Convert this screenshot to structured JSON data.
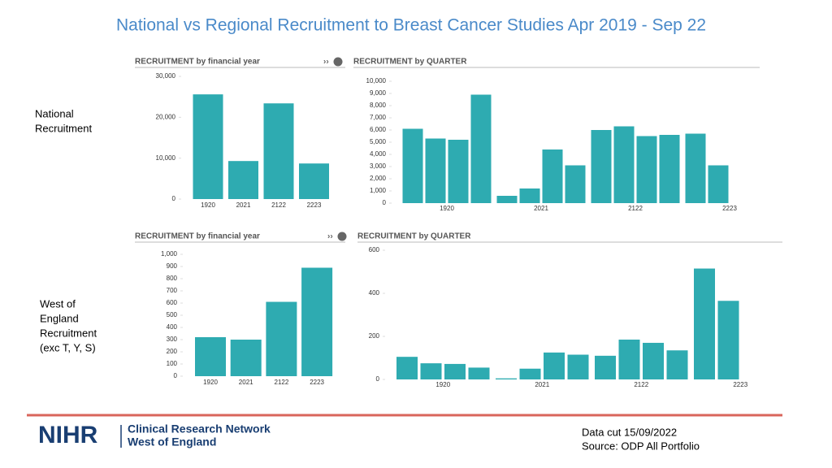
{
  "title": "National vs Regional Recruitment to Breast Cancer Studies Apr 2019 - Sep 22",
  "row_labels": [
    [
      "National",
      "Recruitment"
    ],
    [
      "West of",
      "England",
      "Recruitment",
      "(exc T, Y, S)"
    ]
  ],
  "footer": {
    "logo": "NIHR",
    "network": "Clinical Research Network",
    "region": "West of England",
    "data_cut": "Data cut 15/09/2022",
    "source": "Source: ODP All Portfolio"
  },
  "chart_data": [
    {
      "type": "bar",
      "title": "RECRUITMENT by financial year",
      "categories": [
        "1920",
        "2021",
        "2122",
        "2223"
      ],
      "values": [
        25600,
        9300,
        23400,
        8700
      ],
      "color": "#2eabb1",
      "ylim": [
        0,
        30000
      ],
      "yticks": [
        0,
        {
          "value": 10000,
          "label": "10,000"
        },
        {
          "value": 20000,
          "label": "20,000"
        },
        {
          "value": 30000,
          "label": "30,000"
        }
      ]
    },
    {
      "type": "grouped_bar",
      "title": "RECRUITMENT by QUARTER",
      "group_labels": [
        "1920",
        "2021",
        "2122",
        "2223"
      ],
      "values": [
        6100,
        5300,
        5200,
        8900,
        600,
        1200,
        4400,
        3100,
        6000,
        6300,
        5500,
        5600,
        5700,
        3100
      ],
      "color": "#2eabb1",
      "ylim": [
        0,
        10000
      ],
      "yticks": [
        0,
        {
          "value": 1000,
          "label": "1,000"
        },
        {
          "value": 2000,
          "label": "2,000"
        },
        {
          "value": 3000,
          "label": "3,000"
        },
        {
          "value": 4000,
          "label": "4,000"
        },
        {
          "value": 5000,
          "label": "5,000"
        },
        {
          "value": 6000,
          "label": "6,000"
        },
        {
          "value": 7000,
          "label": "7,000"
        },
        {
          "value": 8000,
          "label": "8,000"
        },
        {
          "value": 9000,
          "label": "9,000"
        },
        {
          "value": 10000,
          "label": "10,000"
        }
      ]
    },
    {
      "type": "bar",
      "title": "RECRUITMENT by financial year",
      "categories": [
        "1920",
        "2021",
        "2122",
        "2223"
      ],
      "values": [
        320,
        300,
        610,
        890
      ],
      "color": "#2eabb1",
      "ylim": [
        0,
        1000
      ],
      "yticks": [
        0,
        100,
        200,
        300,
        400,
        500,
        600,
        700,
        800,
        900,
        {
          "value": 1000,
          "label": "1,000"
        }
      ]
    },
    {
      "type": "grouped_bar",
      "title": "RECRUITMENT by QUARTER",
      "group_labels": [
        "1920",
        "2021",
        "2122",
        "2223"
      ],
      "values": [
        105,
        75,
        72,
        55,
        5,
        50,
        125,
        115,
        110,
        185,
        170,
        135,
        515,
        365
      ],
      "color": "#2eabb1",
      "ylim": [
        0,
        600
      ],
      "yticks": [
        0,
        200,
        400,
        600
      ]
    }
  ]
}
